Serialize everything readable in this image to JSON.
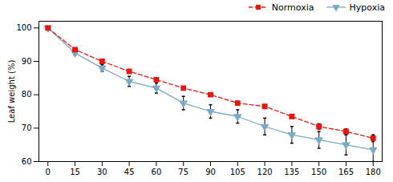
{
  "chart_data": {
    "type": "line",
    "ylabel": "Leaf weight (%)",
    "x": [
      0,
      15,
      30,
      45,
      60,
      75,
      90,
      105,
      120,
      135,
      150,
      165,
      180
    ],
    "series": [
      {
        "name": "Normoxia",
        "color": "#e8160e",
        "marker": "square",
        "line_style": "dashed",
        "values": [
          100,
          93.5,
          90.0,
          87.0,
          84.5,
          82.0,
          80.0,
          77.5,
          76.5,
          73.5,
          70.5,
          69.0,
          67.0
        ],
        "errors": [
          0.0,
          0.5,
          0.5,
          0.5,
          0.5,
          0.5,
          0.5,
          0.5,
          0.5,
          0.5,
          0.8,
          0.8,
          1.0
        ]
      },
      {
        "name": "Hypoxia",
        "color": "#7aaac8",
        "marker": "triangle-down",
        "line_style": "solid",
        "values": [
          100,
          92.5,
          88.0,
          84.0,
          82.0,
          77.5,
          75.0,
          73.5,
          70.5,
          68.0,
          66.5,
          65.0,
          63.5
        ],
        "errors": [
          0.0,
          0.5,
          1.0,
          1.5,
          1.5,
          2.0,
          2.0,
          2.0,
          2.5,
          2.5,
          2.5,
          3.0,
          3.5
        ]
      }
    ],
    "xlim": [
      -5,
      185
    ],
    "xticks": [
      0,
      15,
      30,
      45,
      60,
      75,
      90,
      105,
      120,
      135,
      150,
      165,
      180
    ],
    "ylim": [
      60,
      102
    ],
    "yticks": [
      60,
      70,
      80,
      90,
      100
    ],
    "grid": false,
    "legend": "upper right"
  }
}
